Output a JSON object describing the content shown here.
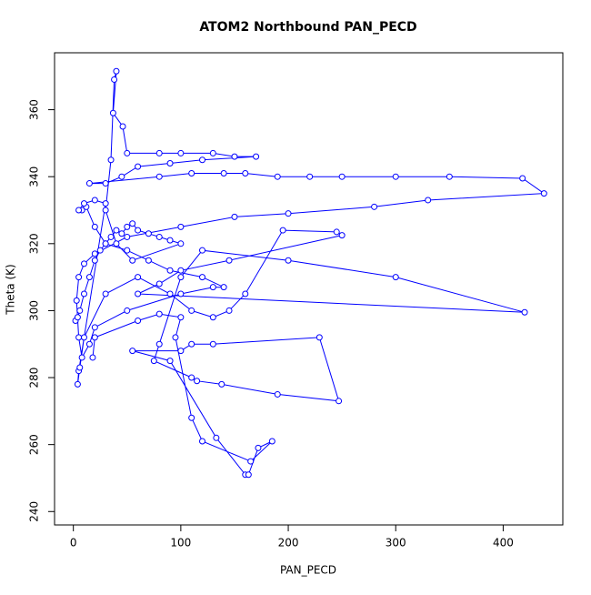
{
  "chart_data": {
    "type": "line",
    "title": "ATOM2 Northbound PAN_PECD",
    "x_label": "PAN_PECD",
    "y_label": "Theta (K)",
    "color": "#0000ff",
    "markers": true,
    "x": [
      2,
      4,
      6,
      10,
      15,
      20,
      25,
      30,
      35,
      40,
      45,
      50,
      55,
      60,
      70,
      80,
      90,
      100,
      55,
      40,
      30,
      35,
      38,
      40,
      37,
      46,
      50,
      80,
      100,
      130,
      150,
      170,
      120,
      90,
      60,
      45,
      30,
      15,
      80,
      110,
      140,
      160,
      190,
      220,
      250,
      300,
      350,
      418,
      438,
      330,
      280,
      200,
      150,
      100,
      50,
      20,
      10,
      5,
      3,
      5,
      8,
      15,
      20,
      50,
      100,
      130,
      140,
      120,
      90,
      70,
      50,
      30,
      20,
      12,
      8,
      5,
      10,
      20,
      30,
      5,
      4,
      6,
      10,
      30,
      60,
      90,
      110,
      130,
      145,
      160,
      195,
      245,
      250,
      145,
      100,
      80,
      60,
      420,
      300,
      200,
      120,
      100,
      80,
      75,
      110,
      115,
      138,
      190,
      247,
      229,
      130,
      110,
      100,
      55,
      90,
      133,
      160,
      163,
      172,
      185,
      165,
      120,
      110,
      95,
      100,
      80,
      60,
      20,
      18
    ],
    "values": [
      297,
      298,
      300,
      305,
      310,
      315,
      318,
      320,
      322,
      324,
      323,
      325,
      326,
      324,
      323,
      322,
      321,
      320,
      315,
      320,
      330,
      345,
      369,
      371.5,
      359,
      355,
      347,
      347,
      347,
      347,
      346,
      346,
      345,
      344,
      343,
      340,
      338,
      338,
      340,
      341,
      341,
      341,
      340,
      340,
      340,
      340,
      340,
      339.5,
      335,
      333,
      331,
      329,
      328,
      325,
      322,
      317,
      314,
      310,
      303,
      292,
      286,
      290,
      295,
      300,
      305,
      307,
      307,
      310,
      312,
      315,
      318,
      320,
      325,
      331,
      330,
      330,
      332,
      333,
      332,
      282,
      278,
      283,
      292,
      305,
      310,
      305,
      300,
      298,
      300,
      305,
      324,
      323.5,
      322.5,
      315,
      312,
      308,
      305,
      299.5,
      310,
      315,
      318,
      310,
      290,
      285,
      280,
      279,
      278,
      275,
      273,
      292,
      290,
      290,
      288,
      288,
      285,
      262,
      251,
      251,
      259,
      261,
      255,
      261,
      268,
      292,
      298,
      299,
      297,
      292,
      286
    ],
    "xlim": [
      -17.5,
      455.5
    ],
    "ylim": [
      236,
      377
    ],
    "xticks": [
      0,
      100,
      200,
      300,
      400
    ],
    "yticks": [
      240,
      260,
      280,
      300,
      320,
      340,
      360
    ]
  }
}
